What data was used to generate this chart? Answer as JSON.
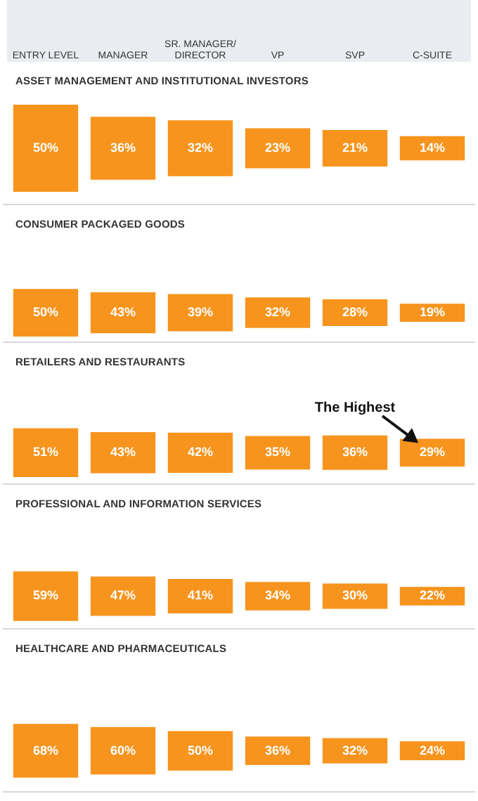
{
  "chart_data": [
    {
      "type": "other",
      "title": "ASSET MANAGEMENT AND INSTITUTIONAL INVESTORS",
      "categories": [
        "ENTRY LEVEL",
        "MANAGER",
        "SR. MANAGER/ DIRECTOR",
        "VP",
        "SVP",
        "C-SUITE"
      ],
      "values": [
        50,
        36,
        32,
        23,
        21,
        14
      ],
      "value_labels": [
        "50%",
        "36%",
        "32%",
        "23%",
        "21%",
        "14%"
      ],
      "color": "#f7941d"
    },
    {
      "type": "other",
      "title": "CONSUMER PACKAGED GOODS",
      "values": [
        50,
        43,
        39,
        32,
        28,
        19
      ],
      "value_labels": [
        "50%",
        "43%",
        "39%",
        "32%",
        "28%",
        "19%"
      ],
      "color": "#f7941d"
    },
    {
      "type": "other",
      "title": "RETAILERS AND RESTAURANTS",
      "values": [
        51,
        43,
        42,
        35,
        36,
        29
      ],
      "value_labels": [
        "51%",
        "43%",
        "42%",
        "35%",
        "36%",
        "29%"
      ],
      "color": "#f7941d",
      "annotations": [
        "The Highest"
      ]
    },
    {
      "type": "other",
      "title": "PROFESSIONAL AND INFORMATION SERVICES",
      "values": [
        59,
        47,
        41,
        34,
        30,
        22
      ],
      "value_labels": [
        "59%",
        "47%",
        "41%",
        "34%",
        "30%",
        "22%"
      ],
      "color": "#f7941d"
    },
    {
      "type": "other",
      "title": "HEALTHCARE AND PHARMACEUTICALS",
      "values": [
        68,
        60,
        50,
        36,
        32,
        24
      ],
      "value_labels": [
        "68%",
        "60%",
        "50%",
        "36%",
        "32%",
        "24%"
      ],
      "color": "#f7941d"
    }
  ]
}
